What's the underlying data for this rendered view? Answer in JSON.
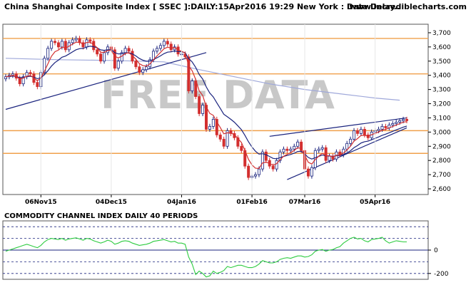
{
  "chart_data": [
    {
      "type": "candlestick",
      "title": "China Shanghai Composite Index [ SSEC ]:DAILY:15Apr2016 19:29 New York : Data Delay..",
      "brand": "www.incrediblecharts.com",
      "watermark": "FREE DATA",
      "ylim": [
        2560,
        3760
      ],
      "y_ticks": [
        {
          "value": 3700,
          "label": "3,700"
        },
        {
          "value": 3600,
          "label": "3,600"
        },
        {
          "value": 3500,
          "label": "3,500"
        },
        {
          "value": 3400,
          "label": "3,400"
        },
        {
          "value": 3300,
          "label": "3,300"
        },
        {
          "value": 3200,
          "label": "3,200"
        },
        {
          "value": 3100,
          "label": "3,100"
        },
        {
          "value": 3000,
          "label": "3,000"
        },
        {
          "value": 2900,
          "label": "2,900"
        },
        {
          "value": 2800,
          "label": "2,800"
        },
        {
          "value": 2700,
          "label": "2,700"
        },
        {
          "value": 2600,
          "label": "2,600"
        }
      ],
      "x_ticks": [
        {
          "index": 10,
          "label": "06Nov15"
        },
        {
          "index": 30,
          "label": "04Dec15"
        },
        {
          "index": 50,
          "label": "04Jan16"
        },
        {
          "index": 70,
          "label": "01Feb16"
        },
        {
          "index": 85,
          "label": "07Mar16"
        },
        {
          "index": 105,
          "label": "05Apr16"
        }
      ],
      "support_resistance_levels": [
        3660,
        3410,
        3010,
        2850
      ],
      "trendlines": [
        {
          "from": [
            0,
            3160
          ],
          "to": [
            57,
            3560
          ],
          "color": "#1a237e"
        },
        {
          "from": [
            75,
            2970
          ],
          "to": [
            114,
            3100
          ],
          "color": "#1a237e"
        },
        {
          "from": [
            80,
            2665
          ],
          "to": [
            114,
            3030
          ],
          "color": "#1a237e"
        }
      ],
      "long_moving_average": [
        [
          0,
          3520
        ],
        [
          15,
          3510
        ],
        [
          30,
          3505
        ],
        [
          45,
          3495
        ],
        [
          55,
          3440
        ],
        [
          65,
          3390
        ],
        [
          75,
          3340
        ],
        [
          85,
          3300
        ],
        [
          95,
          3270
        ],
        [
          105,
          3240
        ],
        [
          112,
          3225
        ]
      ],
      "closes": [
        3390,
        3400,
        3410,
        3380,
        3340,
        3390,
        3420,
        3410,
        3350,
        3320,
        3420,
        3520,
        3590,
        3640,
        3630,
        3600,
        3640,
        3580,
        3630,
        3650,
        3660,
        3630,
        3600,
        3650,
        3640,
        3580,
        3550,
        3500,
        3560,
        3600,
        3580,
        3450,
        3500,
        3560,
        3590,
        3570,
        3500,
        3460,
        3420,
        3440,
        3460,
        3510,
        3570,
        3590,
        3610,
        3640,
        3620,
        3580,
        3600,
        3550,
        3550,
        3530,
        3290,
        3360,
        3250,
        3130,
        3190,
        3020,
        3040,
        3090,
        2980,
        2950,
        2900,
        3010,
        2990,
        2960,
        2900,
        2870,
        2760,
        2680,
        2690,
        2700,
        2740,
        2860,
        2800,
        2760,
        2740,
        2800,
        2860,
        2880,
        2870,
        2880,
        2900,
        2930,
        2870,
        2740,
        2690,
        2750,
        2870,
        2880,
        2890,
        2800,
        2830,
        2810,
        2860,
        2840,
        2880,
        2920,
        2950,
        3010,
        2990,
        3020,
        2980,
        2960,
        3000,
        3010,
        3020,
        3040,
        3030,
        3050,
        3060,
        3070,
        3080,
        3090,
        3080
      ],
      "fast_ma_color": "#d32f2f",
      "slow_ma_color": "#1a237e",
      "long_ma_color": "#9fa8da",
      "level_color": "#f0a04b",
      "up_color": "#1a237e",
      "down_color": "#d32f2f"
    },
    {
      "type": "line",
      "title": "COMMODITY CHANNEL INDEX DAILY 40 PERIODS",
      "ylim": [
        -250,
        250
      ],
      "y_ticks": [
        {
          "value": 0,
          "label": "0"
        },
        {
          "value": -200,
          "label": "-200"
        }
      ],
      "dashed_levels": [
        200,
        100,
        -100,
        -200
      ],
      "zero_line": 0,
      "line_color": "#2ecc40",
      "values": [
        -10,
        0,
        10,
        20,
        30,
        40,
        50,
        40,
        30,
        20,
        40,
        70,
        90,
        100,
        95,
        90,
        100,
        85,
        95,
        100,
        105,
        95,
        85,
        100,
        95,
        80,
        70,
        60,
        70,
        85,
        75,
        50,
        60,
        75,
        80,
        75,
        60,
        50,
        40,
        45,
        50,
        60,
        75,
        80,
        85,
        90,
        80,
        70,
        75,
        60,
        60,
        50,
        -60,
        -120,
        -210,
        -180,
        -200,
        -230,
        -220,
        -180,
        -200,
        -190,
        -175,
        -140,
        -150,
        -140,
        -130,
        -130,
        -140,
        -150,
        -150,
        -140,
        -120,
        -90,
        -100,
        -110,
        -110,
        -100,
        -80,
        -70,
        -65,
        -70,
        -60,
        -50,
        -50,
        -60,
        -55,
        -40,
        -10,
        0,
        5,
        -10,
        0,
        5,
        20,
        30,
        60,
        80,
        100,
        110,
        95,
        100,
        80,
        70,
        90,
        95,
        100,
        110,
        80,
        60,
        70,
        80,
        75,
        70,
        70
      ]
    }
  ]
}
